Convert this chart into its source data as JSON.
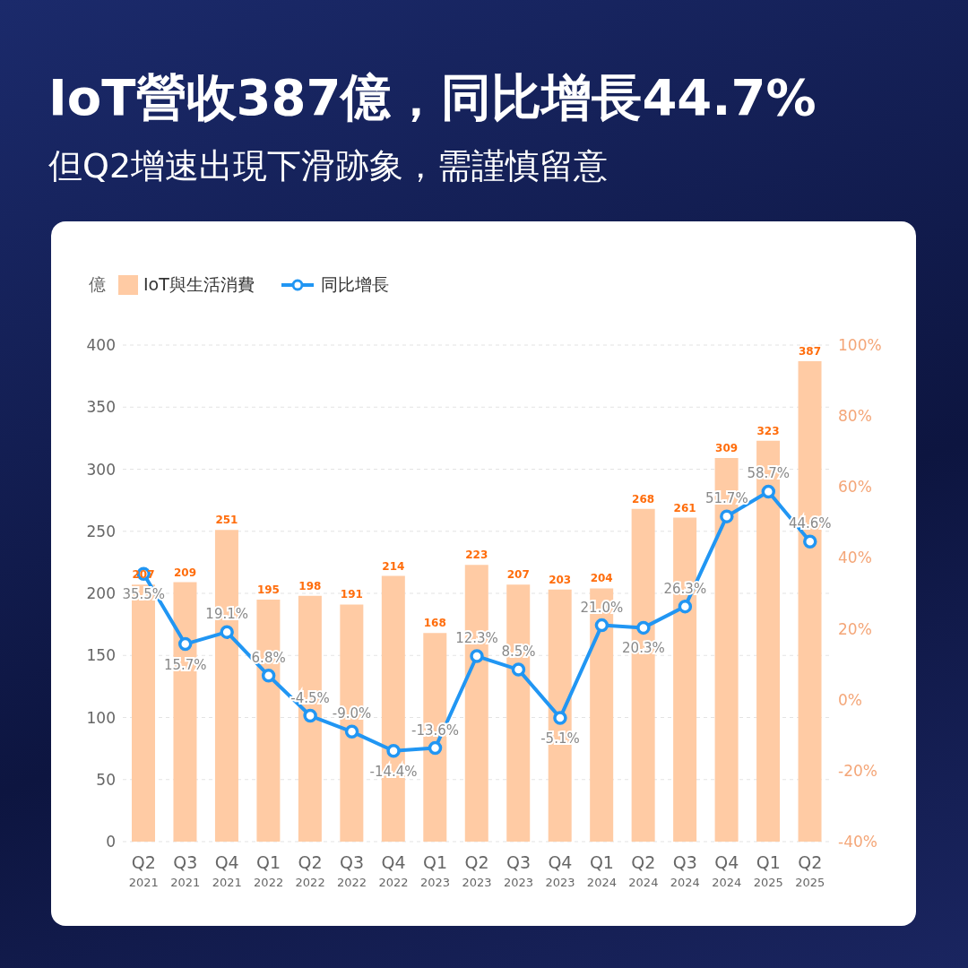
{
  "chart_data": {
    "type": "bar",
    "title": "IoT營收387億，同比增長44.7%",
    "subtitle": "但Q2增速出現下滑跡象，需謹慎留意",
    "ylabel": "億",
    "categories": [
      "Q2 2021",
      "Q3 2021",
      "Q4 2021",
      "Q1 2022",
      "Q2 2022",
      "Q3 2022",
      "Q4 2022",
      "Q1 2023",
      "Q2 2023",
      "Q3 2023",
      "Q4 2023",
      "Q1 2024",
      "Q2 2024",
      "Q3 2024",
      "Q4 2024",
      "Q1 2025",
      "Q2 2025"
    ],
    "series": [
      {
        "name": "IoT與生活消費",
        "color": "#ffcba4",
        "values": [
          207,
          209,
          251,
          195,
          198,
          191,
          214,
          168,
          223,
          207,
          203,
          204,
          268,
          261,
          309,
          323,
          387
        ],
        "value_labels": [
          "207",
          "209",
          "251",
          "195",
          "198",
          "191",
          "214",
          "168",
          "223",
          "207",
          "203",
          "204",
          "268",
          "261",
          "309",
          "323",
          "387"
        ]
      },
      {
        "name": "同比增長",
        "type": "line",
        "axis": "y2",
        "color": "#2196f3",
        "values": [
          35.5,
          15.7,
          19.1,
          6.8,
          -4.5,
          -9.0,
          -14.4,
          -13.6,
          12.3,
          8.5,
          -5.1,
          21.0,
          20.3,
          26.3,
          51.7,
          58.7,
          44.6
        ],
        "value_labels": [
          "35.5%",
          "15.7%",
          "19.1%",
          "6.8%",
          "-4.5%",
          "-9.0%",
          "-14.4%",
          "-13.6%",
          "12.3%",
          "8.5%",
          "-5.1%",
          "21.0%",
          "20.3%",
          "26.3%",
          "51.7%",
          "58.7%",
          "44.6%"
        ]
      }
    ],
    "ylim": [
      0,
      400
    ],
    "yticks": [
      0,
      50,
      100,
      150,
      200,
      250,
      300,
      350,
      400
    ],
    "y2lim": [
      -40,
      100
    ],
    "y2ticks": [
      {
        "value": -40,
        "label": "-40%"
      },
      {
        "value": -20,
        "label": "-20%"
      },
      {
        "value": 0,
        "label": "0%"
      },
      {
        "value": 20,
        "label": "20%"
      },
      {
        "value": 40,
        "label": "40%"
      },
      {
        "value": 60,
        "label": "60%"
      },
      {
        "value": 80,
        "label": "80%"
      },
      {
        "value": 100,
        "label": "100%"
      }
    ],
    "grid": "y",
    "legend": "top left",
    "marker": "circle",
    "line_style": "solid"
  }
}
